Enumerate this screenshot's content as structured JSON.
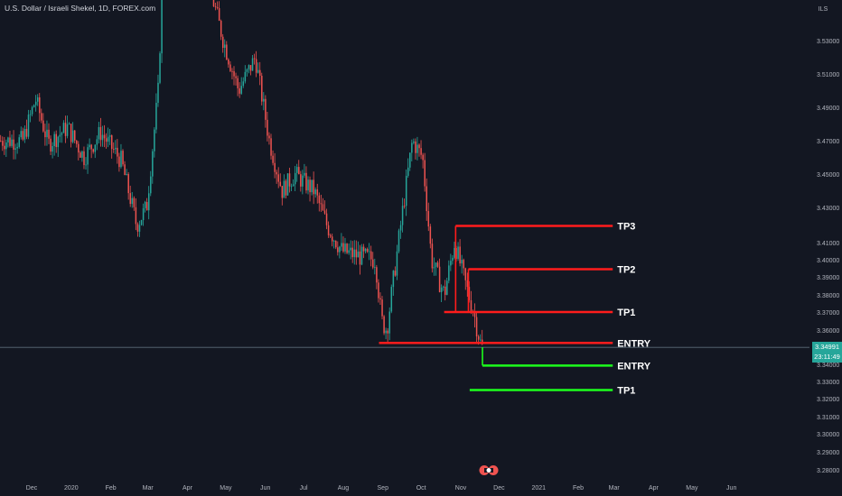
{
  "header": {
    "symbol_title": "U.S. Dollar / Israeli Shekel, 1D, FOREX.com"
  },
  "toolbar": {
    "scale_label": "ILS"
  },
  "current_price": {
    "value": "3.34991",
    "countdown": "23:11:49"
  },
  "colors": {
    "background": "#131722",
    "up_candle": "#26a69a",
    "down_candle": "#ef5350",
    "level_red": "#ff1c1c",
    "level_green": "#1cff1c",
    "label_text": "#ffffff",
    "axis_text": "#b2b5be"
  },
  "chart_data": {
    "type": "candlestick",
    "title": "U.S. Dollar / Israeli Shekel, 1D, FOREX.com",
    "x_tick_labels": [
      "Dec",
      "2020",
      "Feb",
      "Mar",
      "Apr",
      "May",
      "Jun",
      "Jul",
      "Aug",
      "Sep",
      "Oct",
      "Nov",
      "Dec",
      "2021",
      "Feb",
      "Mar",
      "Apr",
      "May",
      "Jun"
    ],
    "y_tick_labels": [
      "3.53000",
      "3.51000",
      "3.49000",
      "3.47000",
      "3.45000",
      "3.43000",
      "3.41000",
      "3.40000",
      "3.39000",
      "3.38000",
      "3.37000",
      "3.36000",
      "3.34000",
      "3.33000",
      "3.32000",
      "3.31000",
      "3.30000",
      "3.29000",
      "3.28000"
    ],
    "y_range": [
      3.275,
      3.545
    ],
    "levels": [
      {
        "label": "TP3",
        "price": 3.4195,
        "color": "red",
        "from": "2020-10-28",
        "to": "2021-02-28"
      },
      {
        "label": "TP2",
        "price": 3.3945,
        "color": "red",
        "from": "2020-11-07",
        "to": "2021-02-28"
      },
      {
        "label": "TP1",
        "price": 3.37,
        "color": "red",
        "from": "2020-10-19",
        "to": "2021-02-28"
      },
      {
        "label": "ENTRY",
        "price": 3.3525,
        "color": "red",
        "from": "2020-08-29",
        "to": "2021-02-28"
      },
      {
        "label": "ENTRY",
        "price": 3.3393,
        "color": "green",
        "from": "2020-11-18",
        "to": "2021-02-28"
      },
      {
        "label": "TP1",
        "price": 3.325,
        "color": "green",
        "from": "2020-11-08",
        "to": "2021-02-28"
      }
    ],
    "price_path": [
      {
        "date": "2019-11-25",
        "price": 3.47
      },
      {
        "date": "2019-12-05",
        "price": 3.495
      },
      {
        "date": "2019-12-15",
        "price": 3.468
      },
      {
        "date": "2019-12-30",
        "price": 3.478
      },
      {
        "date": "2020-01-12",
        "price": 3.46
      },
      {
        "date": "2020-01-25",
        "price": 3.475
      },
      {
        "date": "2020-02-10",
        "price": 3.458
      },
      {
        "date": "2020-02-22",
        "price": 3.42
      },
      {
        "date": "2020-03-01",
        "price": 3.43
      },
      {
        "date": "2020-03-10",
        "price": 3.5
      },
      {
        "date": "2020-03-20",
        "price": 3.7
      },
      {
        "date": "2020-04-05",
        "price": 3.6
      },
      {
        "date": "2020-04-20",
        "price": 3.56
      },
      {
        "date": "2020-04-30",
        "price": 3.53
      },
      {
        "date": "2020-05-12",
        "price": 3.5
      },
      {
        "date": "2020-05-25",
        "price": 3.52
      },
      {
        "date": "2020-06-05",
        "price": 3.47
      },
      {
        "date": "2020-06-15",
        "price": 3.44
      },
      {
        "date": "2020-06-25",
        "price": 3.45
      },
      {
        "date": "2020-07-10",
        "price": 3.44
      },
      {
        "date": "2020-07-20",
        "price": 3.42
      },
      {
        "date": "2020-08-01",
        "price": 3.405
      },
      {
        "date": "2020-08-15",
        "price": 3.402
      },
      {
        "date": "2020-08-27",
        "price": 3.4
      },
      {
        "date": "2020-09-01",
        "price": 3.365
      },
      {
        "date": "2020-09-05",
        "price": 3.36
      },
      {
        "date": "2020-09-15",
        "price": 3.415
      },
      {
        "date": "2020-09-25",
        "price": 3.47
      },
      {
        "date": "2020-10-03",
        "price": 3.46
      },
      {
        "date": "2020-10-10",
        "price": 3.4
      },
      {
        "date": "2020-10-20",
        "price": 3.38
      },
      {
        "date": "2020-10-28",
        "price": 3.41
      },
      {
        "date": "2020-11-06",
        "price": 3.385
      },
      {
        "date": "2020-11-12",
        "price": 3.37
      },
      {
        "date": "2020-11-18",
        "price": 3.35
      }
    ]
  }
}
